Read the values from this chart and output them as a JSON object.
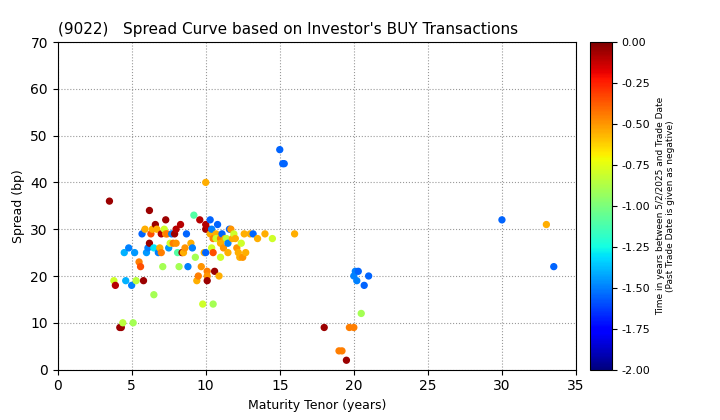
{
  "title": "(9022)   Spread Curve based on Investor's BUY Transactions",
  "xlabel": "Maturity Tenor (years)",
  "ylabel": "Spread (bp)",
  "colorbar_label": "Time in years between 5/2/2025 and Trade Date\n(Past Trade Date is given as negative)",
  "xlim": [
    0,
    35
  ],
  "ylim": [
    0,
    70
  ],
  "xticks": [
    0,
    5,
    10,
    15,
    20,
    25,
    30,
    35
  ],
  "yticks": [
    0,
    10,
    20,
    30,
    40,
    50,
    60,
    70
  ],
  "clim": [
    -2.0,
    0.0
  ],
  "cticks": [
    0.0,
    -0.25,
    -0.5,
    -0.75,
    -1.0,
    -1.25,
    -1.5,
    -1.75,
    -2.0
  ],
  "points": [
    [
      3.5,
      36,
      -0.05
    ],
    [
      3.8,
      19,
      -0.8
    ],
    [
      3.9,
      18,
      -0.1
    ],
    [
      4.2,
      9,
      -0.05
    ],
    [
      4.3,
      9,
      -0.05
    ],
    [
      4.4,
      10,
      -0.85
    ],
    [
      4.5,
      25,
      -1.4
    ],
    [
      4.6,
      19,
      -1.4
    ],
    [
      4.8,
      26,
      -1.5
    ],
    [
      5.0,
      18,
      -1.5
    ],
    [
      5.1,
      10,
      -0.9
    ],
    [
      5.2,
      25,
      -1.45
    ],
    [
      5.3,
      19,
      -0.85
    ],
    [
      5.5,
      23,
      -0.45
    ],
    [
      5.6,
      22,
      -0.35
    ],
    [
      5.7,
      29,
      -1.55
    ],
    [
      5.8,
      19,
      -0.05
    ],
    [
      5.9,
      30,
      -0.55
    ],
    [
      6.0,
      25,
      -1.45
    ],
    [
      6.1,
      26,
      -1.5
    ],
    [
      6.2,
      27,
      -0.05
    ],
    [
      6.2,
      34,
      -0.05
    ],
    [
      6.3,
      29,
      -0.35
    ],
    [
      6.4,
      30,
      -0.55
    ],
    [
      6.5,
      26,
      -1.3
    ],
    [
      6.5,
      16,
      -0.9
    ],
    [
      6.6,
      31,
      -0.05
    ],
    [
      6.7,
      30,
      -0.55
    ],
    [
      6.8,
      25,
      -1.5
    ],
    [
      6.9,
      26,
      -0.55
    ],
    [
      7.0,
      29,
      -0.1
    ],
    [
      7.0,
      25,
      -0.45
    ],
    [
      7.1,
      22,
      -0.9
    ],
    [
      7.2,
      30,
      -0.8
    ],
    [
      7.3,
      32,
      -0.05
    ],
    [
      7.3,
      29,
      -0.5
    ],
    [
      7.4,
      29,
      -0.45
    ],
    [
      7.5,
      26,
      -1.45
    ],
    [
      7.6,
      27,
      -0.8
    ],
    [
      7.7,
      29,
      -1.5
    ],
    [
      7.8,
      27,
      -0.45
    ],
    [
      7.9,
      29,
      -0.05
    ],
    [
      8.0,
      30,
      -0.1
    ],
    [
      8.0,
      27,
      -0.5
    ],
    [
      8.1,
      25,
      -1.1
    ],
    [
      8.2,
      22,
      -0.9
    ],
    [
      8.3,
      31,
      -0.1
    ],
    [
      8.4,
      25,
      -0.05
    ],
    [
      8.5,
      25,
      -0.55
    ],
    [
      8.6,
      26,
      -0.5
    ],
    [
      8.7,
      29,
      -1.55
    ],
    [
      8.8,
      22,
      -1.5
    ],
    [
      9.0,
      27,
      -0.55
    ],
    [
      9.1,
      26,
      -1.5
    ],
    [
      9.2,
      33,
      -1.1
    ],
    [
      9.3,
      24,
      -0.9
    ],
    [
      9.4,
      19,
      -0.55
    ],
    [
      9.5,
      20,
      -0.45
    ],
    [
      9.6,
      32,
      -0.1
    ],
    [
      9.7,
      22,
      -0.5
    ],
    [
      9.8,
      14,
      -0.8
    ],
    [
      9.9,
      25,
      -0.55
    ],
    [
      10.0,
      40,
      -0.55
    ],
    [
      10.0,
      30,
      -0.05
    ],
    [
      10.0,
      31,
      -0.1
    ],
    [
      10.0,
      25,
      -1.55
    ],
    [
      10.1,
      21,
      -0.45
    ],
    [
      10.1,
      20,
      -0.5
    ],
    [
      10.1,
      19,
      -0.05
    ],
    [
      10.2,
      30,
      -0.1
    ],
    [
      10.3,
      29,
      -0.55
    ],
    [
      10.3,
      32,
      -1.55
    ],
    [
      10.4,
      30,
      -1.5
    ],
    [
      10.4,
      26,
      -0.8
    ],
    [
      10.5,
      28,
      -0.45
    ],
    [
      10.5,
      25,
      -0.35
    ],
    [
      10.5,
      14,
      -0.9
    ],
    [
      10.6,
      21,
      -0.05
    ],
    [
      10.7,
      29,
      -0.55
    ],
    [
      10.7,
      28,
      -0.8
    ],
    [
      10.8,
      31,
      -1.55
    ],
    [
      10.9,
      20,
      -0.55
    ],
    [
      11.0,
      28,
      -0.45
    ],
    [
      11.0,
      27,
      -0.55
    ],
    [
      11.0,
      24,
      -0.8
    ],
    [
      11.1,
      29,
      -1.55
    ],
    [
      11.2,
      26,
      -0.5
    ],
    [
      11.3,
      28,
      -0.55
    ],
    [
      11.4,
      28,
      -0.85
    ],
    [
      11.5,
      27,
      -1.5
    ],
    [
      11.5,
      25,
      -0.55
    ],
    [
      11.6,
      30,
      -1.55
    ],
    [
      11.7,
      30,
      -0.5
    ],
    [
      11.8,
      28,
      -0.55
    ],
    [
      11.9,
      29,
      -0.8
    ],
    [
      12.0,
      28,
      -0.55
    ],
    [
      12.1,
      26,
      -0.5
    ],
    [
      12.2,
      25,
      -0.55
    ],
    [
      12.3,
      24,
      -0.55
    ],
    [
      12.4,
      27,
      -0.8
    ],
    [
      12.5,
      24,
      -0.5
    ],
    [
      12.6,
      29,
      -0.55
    ],
    [
      12.7,
      25,
      -0.55
    ],
    [
      13.0,
      29,
      -0.55
    ],
    [
      13.2,
      29,
      -1.55
    ],
    [
      13.5,
      28,
      -0.55
    ],
    [
      14.0,
      29,
      -0.55
    ],
    [
      14.5,
      28,
      -0.8
    ],
    [
      15.0,
      47,
      -1.55
    ],
    [
      15.2,
      44,
      -1.55
    ],
    [
      15.3,
      44,
      -1.55
    ],
    [
      16.0,
      29,
      -0.55
    ],
    [
      18.0,
      9,
      -0.05
    ],
    [
      19.0,
      4,
      -0.45
    ],
    [
      19.2,
      4,
      -0.45
    ],
    [
      19.5,
      2,
      -0.05
    ],
    [
      19.7,
      9,
      -0.45
    ],
    [
      20.0,
      9,
      -0.45
    ],
    [
      20.0,
      20,
      -1.5
    ],
    [
      20.1,
      21,
      -1.5
    ],
    [
      20.2,
      19,
      -1.5
    ],
    [
      20.3,
      21,
      -1.55
    ],
    [
      20.5,
      12,
      -0.9
    ],
    [
      20.7,
      18,
      -1.55
    ],
    [
      21.0,
      20,
      -1.55
    ],
    [
      30.0,
      32,
      -1.55
    ],
    [
      33.0,
      31,
      -0.55
    ],
    [
      33.5,
      22,
      -1.55
    ]
  ]
}
